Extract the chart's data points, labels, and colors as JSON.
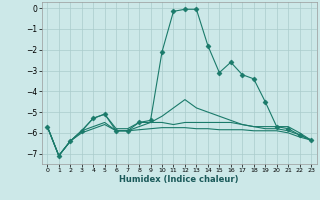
{
  "xlabel": "Humidex (Indice chaleur)",
  "background_color": "#cce8e8",
  "grid_color": "#aacccc",
  "line_color": "#1a7a6a",
  "xlim": [
    -0.5,
    23.5
  ],
  "ylim": [
    -7.5,
    0.3
  ],
  "yticks": [
    0,
    -1,
    -2,
    -3,
    -4,
    -5,
    -6,
    -7
  ],
  "xticks": [
    0,
    1,
    2,
    3,
    4,
    5,
    6,
    7,
    8,
    9,
    10,
    11,
    12,
    13,
    14,
    15,
    16,
    17,
    18,
    19,
    20,
    21,
    22,
    23
  ],
  "series": [
    {
      "x": [
        0,
        1,
        2,
        3,
        4,
        5,
        6,
        7,
        8,
        9,
        10,
        11,
        12,
        13,
        14,
        15,
        16,
        17,
        18,
        19,
        20,
        21,
        22,
        23
      ],
      "y": [
        -5.7,
        -7.1,
        -6.4,
        -6.0,
        -5.8,
        -5.6,
        -5.9,
        -5.9,
        -5.85,
        -5.8,
        -5.75,
        -5.75,
        -5.75,
        -5.8,
        -5.8,
        -5.85,
        -5.85,
        -5.85,
        -5.9,
        -5.9,
        -5.9,
        -6.0,
        -6.2,
        -6.35
      ],
      "marker": null,
      "lw": 0.8
    },
    {
      "x": [
        0,
        1,
        2,
        3,
        4,
        5,
        6,
        7,
        8,
        9,
        10,
        11,
        12,
        13,
        14,
        15,
        16,
        17,
        18,
        19,
        20,
        21,
        22,
        23
      ],
      "y": [
        -5.7,
        -7.1,
        -6.4,
        -5.9,
        -5.7,
        -5.5,
        -5.9,
        -5.9,
        -5.7,
        -5.5,
        -5.2,
        -4.8,
        -4.4,
        -4.8,
        -5.0,
        -5.2,
        -5.4,
        -5.6,
        -5.7,
        -5.8,
        -5.8,
        -5.9,
        -6.1,
        -6.35
      ],
      "marker": null,
      "lw": 0.8
    },
    {
      "x": [
        0,
        1,
        2,
        3,
        4,
        5,
        6,
        7,
        8,
        9,
        10,
        11,
        12,
        13,
        14,
        15,
        16,
        17,
        18,
        19,
        20,
        21,
        22,
        23
      ],
      "y": [
        -5.7,
        -7.1,
        -6.4,
        -5.9,
        -5.3,
        -5.1,
        -5.9,
        -5.9,
        -5.5,
        -5.4,
        -2.1,
        -0.15,
        -0.05,
        -0.05,
        -1.8,
        -3.1,
        -2.6,
        -3.2,
        -3.4,
        -4.5,
        -5.7,
        -5.8,
        -6.1,
        -6.35
      ],
      "marker": "D",
      "markersize": 2.5,
      "lw": 0.8
    },
    {
      "x": [
        0,
        1,
        2,
        3,
        4,
        5,
        6,
        7,
        8,
        9,
        10,
        11,
        12,
        13,
        14,
        15,
        16,
        17,
        18,
        19,
        20,
        21,
        22,
        23
      ],
      "y": [
        -5.7,
        -7.1,
        -6.4,
        -5.9,
        -5.3,
        -5.1,
        -5.8,
        -5.8,
        -5.5,
        -5.5,
        -5.5,
        -5.6,
        -5.5,
        -5.5,
        -5.5,
        -5.5,
        -5.5,
        -5.6,
        -5.7,
        -5.7,
        -5.7,
        -5.7,
        -6.0,
        -6.35
      ],
      "marker": null,
      "lw": 0.8
    }
  ]
}
